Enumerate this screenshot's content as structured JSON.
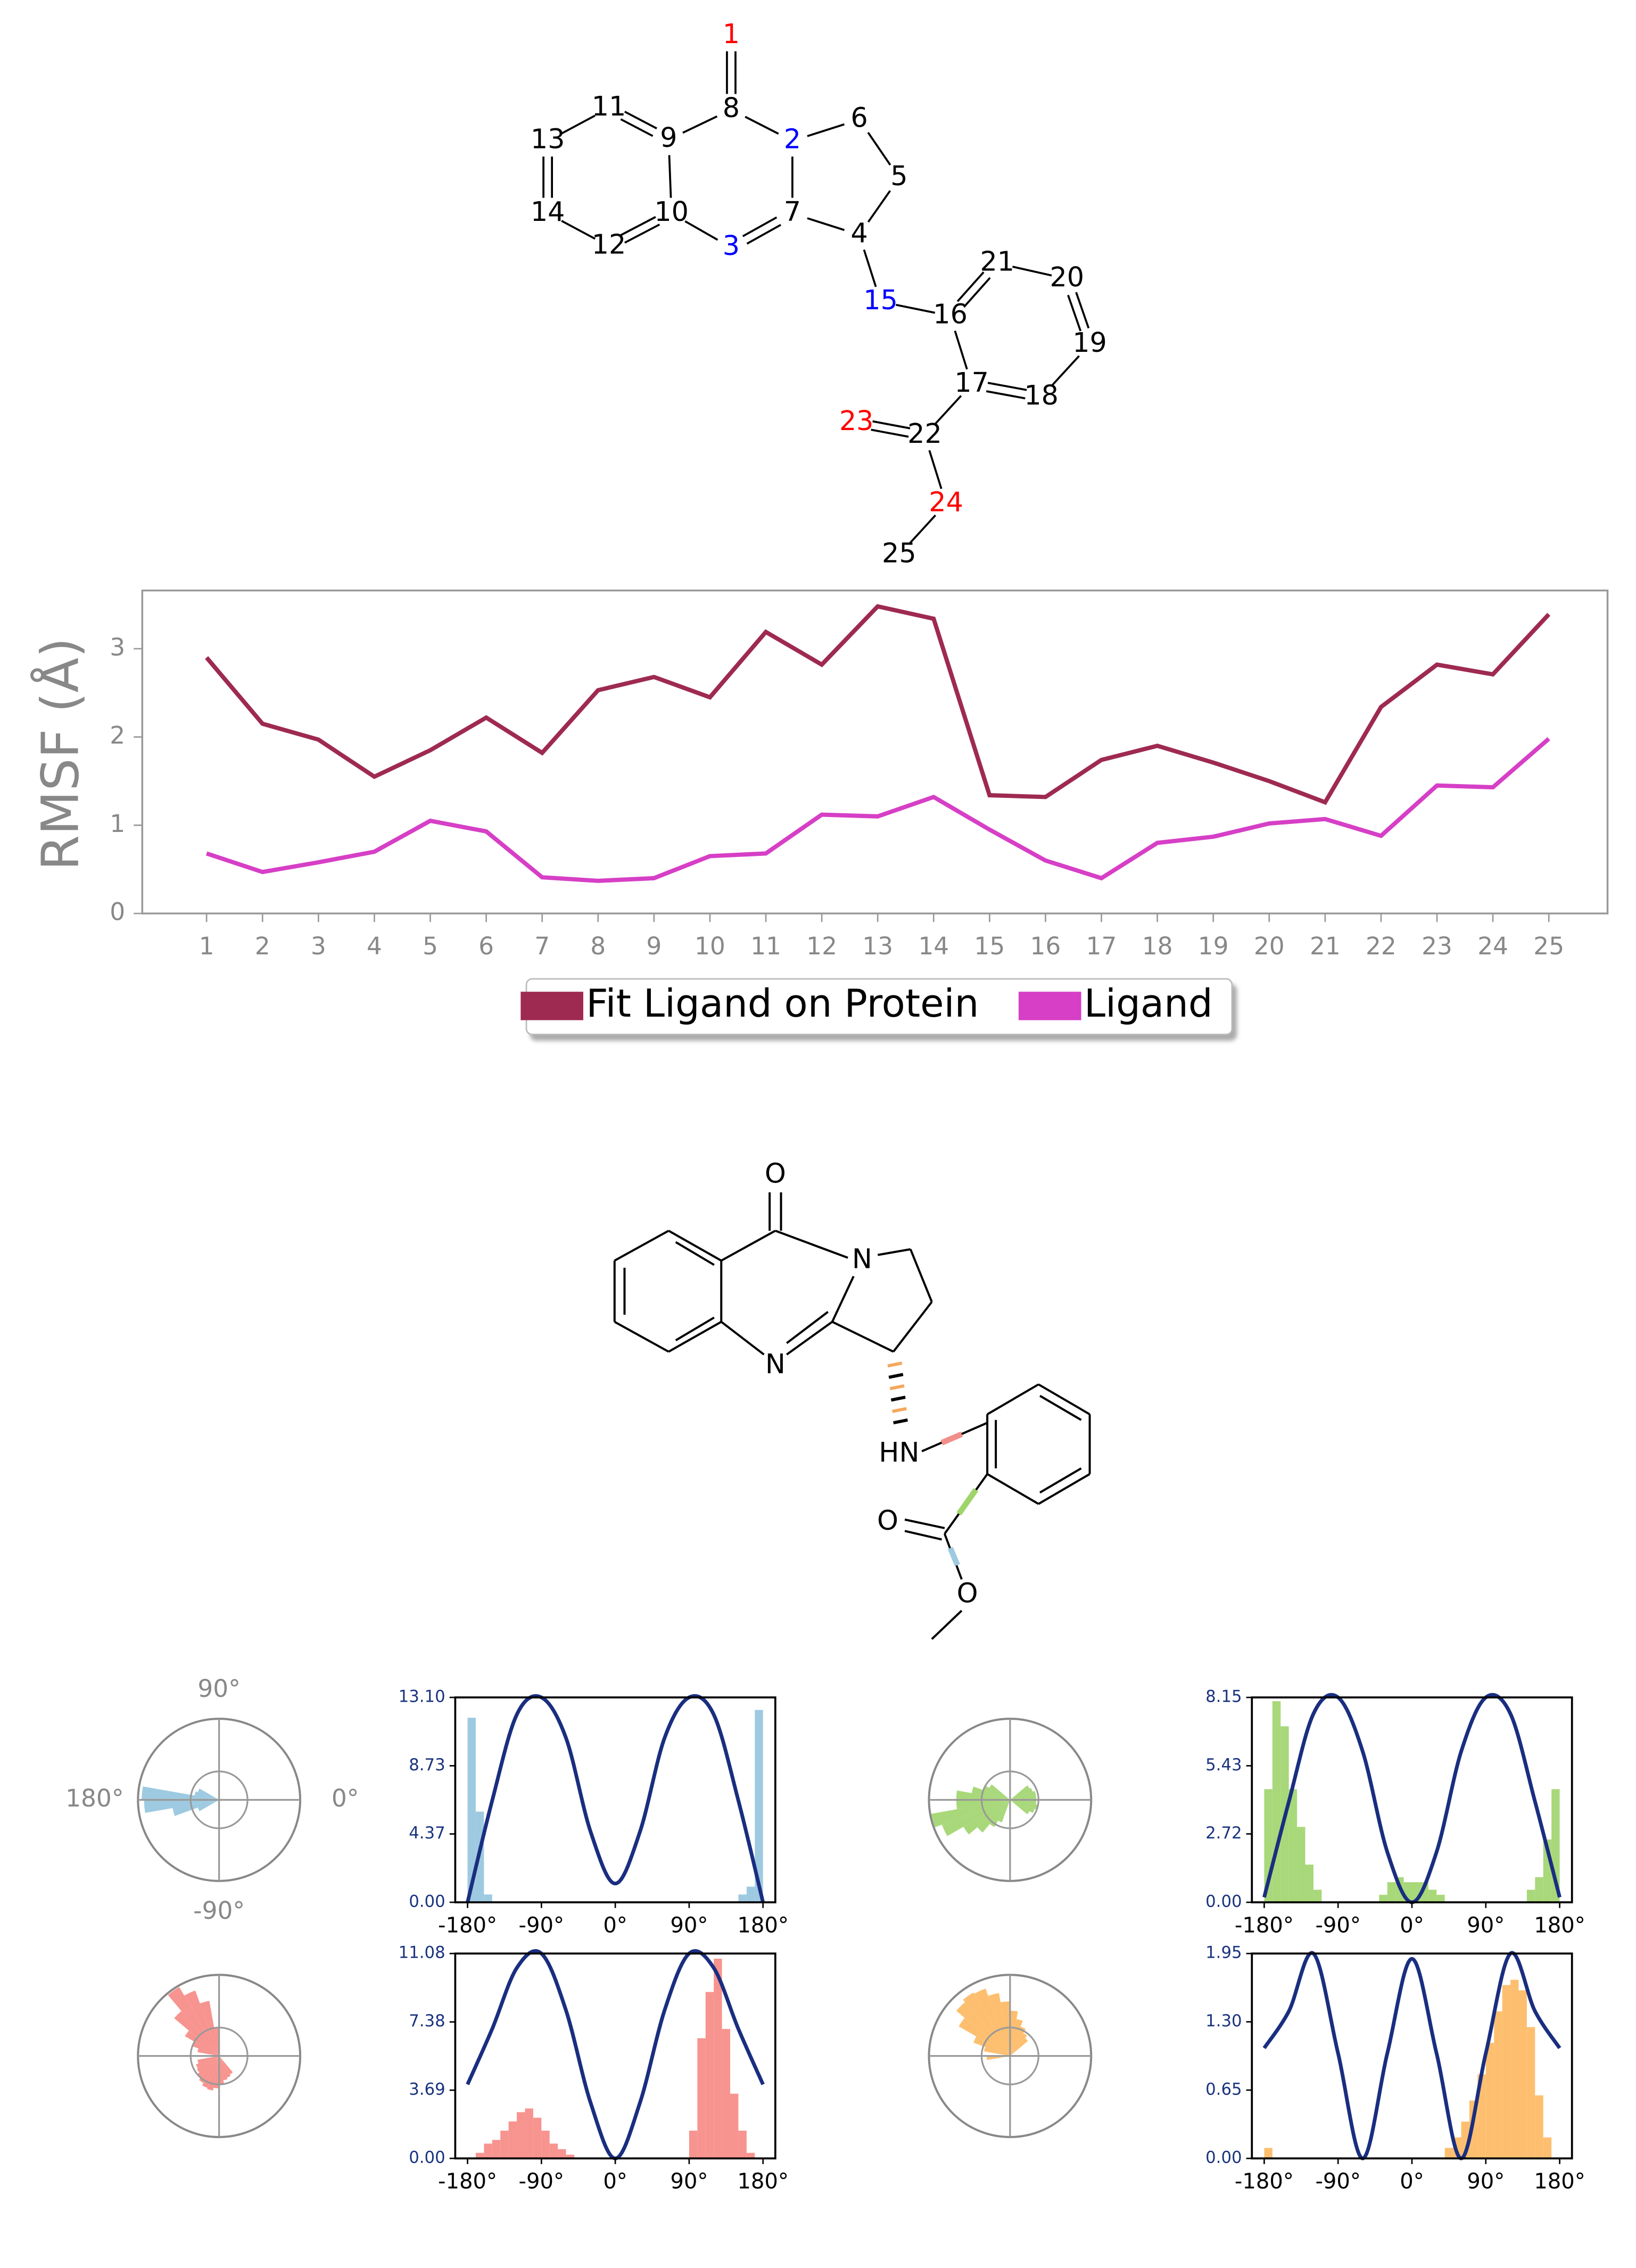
{
  "molecule_numbered": {
    "atoms": [
      {
        "label": "1",
        "color": "#ff0000"
      },
      {
        "label": "2",
        "color": "#0000ff"
      },
      {
        "label": "3",
        "color": "#0000ff"
      },
      {
        "label": "4",
        "color": "#000000"
      },
      {
        "label": "5",
        "color": "#000000"
      },
      {
        "label": "6",
        "color": "#000000"
      },
      {
        "label": "7",
        "color": "#000000"
      },
      {
        "label": "8",
        "color": "#000000"
      },
      {
        "label": "9",
        "color": "#000000"
      },
      {
        "label": "10",
        "color": "#000000"
      },
      {
        "label": "11",
        "color": "#000000"
      },
      {
        "label": "12",
        "color": "#000000"
      },
      {
        "label": "13",
        "color": "#000000"
      },
      {
        "label": "14",
        "color": "#000000"
      },
      {
        "label": "15",
        "color": "#0000ff"
      },
      {
        "label": "16",
        "color": "#000000"
      },
      {
        "label": "17",
        "color": "#000000"
      },
      {
        "label": "18",
        "color": "#000000"
      },
      {
        "label": "19",
        "color": "#000000"
      },
      {
        "label": "20",
        "color": "#000000"
      },
      {
        "label": "21",
        "color": "#000000"
      },
      {
        "label": "22",
        "color": "#000000"
      },
      {
        "label": "23",
        "color": "#ff0000"
      },
      {
        "label": "24",
        "color": "#ff0000"
      },
      {
        "label": "25",
        "color": "#000000"
      }
    ]
  },
  "molecule_2d": {
    "atoms": [
      "O",
      "N",
      "N",
      "HN",
      "O",
      "O"
    ]
  },
  "chart_data": [
    {
      "type": "line",
      "ylabel": "RMSF (Å)",
      "x": [
        1,
        2,
        3,
        4,
        5,
        6,
        7,
        8,
        9,
        10,
        11,
        12,
        13,
        14,
        15,
        16,
        17,
        18,
        19,
        20,
        21,
        22,
        23,
        24,
        25
      ],
      "xlim": [
        -0.15,
        26.05
      ],
      "xticks": [
        1,
        2,
        3,
        4,
        5,
        6,
        7,
        8,
        9,
        10,
        11,
        12,
        13,
        14,
        15,
        16,
        17,
        18,
        19,
        20,
        21,
        22,
        23,
        24,
        25
      ],
      "ylim": [
        0,
        3.66
      ],
      "yticks": [
        0,
        1,
        2,
        3
      ],
      "legend": "lower center",
      "series": [
        {
          "name": "Fit Ligand on Protein",
          "color": "#9e2a51",
          "values": [
            2.9,
            2.15,
            1.97,
            1.55,
            1.85,
            2.22,
            1.82,
            2.53,
            2.68,
            2.45,
            3.19,
            2.82,
            3.48,
            3.34,
            1.34,
            1.32,
            1.74,
            1.9,
            1.71,
            1.5,
            1.26,
            2.34,
            2.82,
            2.71,
            3.39
          ]
        },
        {
          "name": "Ligand",
          "color": "#d63fc6",
          "values": [
            0.68,
            0.47,
            0.58,
            0.7,
            1.05,
            0.93,
            0.41,
            0.37,
            0.4,
            0.65,
            0.68,
            1.12,
            1.1,
            1.32,
            0.95,
            0.6,
            0.4,
            0.8,
            0.87,
            1.02,
            1.07,
            0.88,
            1.45,
            1.43,
            1.98
          ]
        }
      ]
    },
    {
      "type": "torsion",
      "color": "#9ecae1",
      "line_color": "#1a2e80",
      "polar_labels": [
        "90°",
        "180°",
        "0°",
        "-90°"
      ],
      "xlim": [
        -195,
        195
      ],
      "xticks": [
        {
          "value": -180,
          "label": "-180°"
        },
        {
          "value": -90,
          "label": "-90°"
        },
        {
          "value": 0,
          "label": "0°"
        },
        {
          "value": 90,
          "label": "90°"
        },
        {
          "value": 180,
          "label": "180°"
        }
      ],
      "ylim": [
        0,
        13.1
      ],
      "yticks": [
        {
          "value": 0,
          "label": "0.00"
        },
        {
          "value": 4.37,
          "label": "4.37"
        },
        {
          "value": 8.73,
          "label": "8.73"
        },
        {
          "value": 13.1,
          "label": "13.10"
        }
      ],
      "bins": [
        -180,
        -170,
        -160,
        -150,
        -140,
        -130,
        -120,
        -110,
        -100,
        -90,
        -80,
        -70,
        -60,
        -50,
        -40,
        -30,
        -20,
        -10,
        0,
        10,
        20,
        30,
        40,
        50,
        60,
        70,
        80,
        90,
        100,
        110,
        120,
        130,
        140,
        150,
        160,
        170,
        180
      ],
      "counts": [
        11.8,
        5.8,
        0.5,
        0,
        0,
        0,
        0,
        0,
        0,
        0,
        0,
        0,
        0,
        0,
        0,
        0,
        0,
        0,
        0,
        0,
        0,
        0,
        0,
        0,
        0,
        0,
        0,
        0,
        0,
        0,
        0,
        0,
        0,
        0.5,
        1,
        12.3
      ],
      "potential_x": [
        -180,
        -150,
        -120,
        -90,
        -60,
        -30,
        0,
        30,
        60,
        90,
        120,
        150,
        180
      ],
      "potential": [
        0,
        6.5,
        12,
        13.1,
        10.5,
        4.5,
        1.2,
        4.5,
        10.5,
        13.1,
        12,
        6.5,
        0
      ]
    },
    {
      "type": "torsion",
      "color": "#a8d87a",
      "line_color": "#1a2e80",
      "xlim": [
        -195,
        195
      ],
      "xticks": [
        {
          "value": -180,
          "label": "-180°"
        },
        {
          "value": -90,
          "label": "-90°"
        },
        {
          "value": 0,
          "label": "0°"
        },
        {
          "value": 90,
          "label": "90°"
        },
        {
          "value": 180,
          "label": "180°"
        }
      ],
      "ylim": [
        0,
        8.15
      ],
      "yticks": [
        {
          "value": 0,
          "label": "0.00"
        },
        {
          "value": 2.72,
          "label": "2.72"
        },
        {
          "value": 5.43,
          "label": "5.43"
        },
        {
          "value": 8.15,
          "label": "8.15"
        }
      ],
      "bins": [
        -180,
        -170,
        -160,
        -150,
        -140,
        -130,
        -120,
        -110,
        -100,
        -90,
        -80,
        -70,
        -60,
        -50,
        -40,
        -30,
        -20,
        -10,
        0,
        10,
        20,
        30,
        40,
        50,
        60,
        70,
        80,
        90,
        100,
        110,
        120,
        130,
        140,
        150,
        160,
        170,
        180
      ],
      "counts": [
        4.5,
        8,
        7,
        4.5,
        3,
        1.5,
        0.5,
        0,
        0,
        0,
        0,
        0,
        0,
        0,
        0.3,
        0.8,
        1,
        0.8,
        0.8,
        0.8,
        0.5,
        0.3,
        0,
        0,
        0,
        0,
        0,
        0,
        0,
        0,
        0,
        0,
        0.5,
        1,
        2.5,
        4.5
      ],
      "potential_x": [
        -180,
        -150,
        -120,
        -90,
        -60,
        -30,
        0,
        30,
        60,
        90,
        120,
        150,
        180
      ],
      "potential": [
        0.2,
        4,
        7.5,
        8.15,
        6,
        2,
        0,
        2,
        6,
        8.15,
        7.5,
        4,
        0.2
      ]
    },
    {
      "type": "torsion",
      "color": "#f7948f",
      "line_color": "#1a2e80",
      "xlim": [
        -195,
        195
      ],
      "xticks": [
        {
          "value": -180,
          "label": "-180°"
        },
        {
          "value": -90,
          "label": "-90°"
        },
        {
          "value": 0,
          "label": "0°"
        },
        {
          "value": 90,
          "label": "90°"
        },
        {
          "value": 180,
          "label": "180°"
        }
      ],
      "ylim": [
        0,
        11.08
      ],
      "yticks": [
        {
          "value": 0,
          "label": "0.00"
        },
        {
          "value": 3.69,
          "label": "3.69"
        },
        {
          "value": 7.38,
          "label": "7.38"
        },
        {
          "value": 11.08,
          "label": "11.08"
        }
      ],
      "bins": [
        -180,
        -170,
        -160,
        -150,
        -140,
        -130,
        -120,
        -110,
        -100,
        -90,
        -80,
        -70,
        -60,
        -50,
        -40,
        -30,
        -20,
        -10,
        0,
        10,
        20,
        30,
        40,
        50,
        60,
        70,
        80,
        90,
        100,
        110,
        120,
        130,
        140,
        150,
        160,
        170,
        180
      ],
      "counts": [
        0,
        0.3,
        0.8,
        1,
        1.5,
        2,
        2.5,
        2.7,
        2.2,
        1.5,
        0.8,
        0.5,
        0.2,
        0,
        0,
        0,
        0,
        0,
        0,
        0,
        0,
        0,
        0,
        0,
        0,
        0,
        0,
        1.5,
        6.5,
        9,
        10.8,
        7,
        3.5,
        1.5,
        0.3,
        0
      ],
      "potential_x": [
        -180,
        -150,
        -120,
        -90,
        -60,
        -30,
        0,
        30,
        60,
        90,
        120,
        150,
        180
      ],
      "potential": [
        4,
        7,
        10.3,
        11.08,
        8,
        3,
        0,
        3,
        8,
        11.08,
        10.3,
        7,
        4
      ]
    },
    {
      "type": "torsion",
      "color": "#fdbf6f",
      "line_color": "#1a2e80",
      "xlim": [
        -195,
        195
      ],
      "xticks": [
        {
          "value": -180,
          "label": "-180°"
        },
        {
          "value": -90,
          "label": "-90°"
        },
        {
          "value": 0,
          "label": "0°"
        },
        {
          "value": 90,
          "label": "90°"
        },
        {
          "value": 180,
          "label": "180°"
        }
      ],
      "ylim": [
        0,
        1.95
      ],
      "yticks": [
        {
          "value": 0,
          "label": "0.00"
        },
        {
          "value": 0.65,
          "label": "0.65"
        },
        {
          "value": 1.3,
          "label": "1.30"
        },
        {
          "value": 1.95,
          "label": "1.95"
        }
      ],
      "bins": [
        -180,
        -170,
        -160,
        -150,
        -140,
        -130,
        -120,
        -110,
        -100,
        -90,
        -80,
        -70,
        -60,
        -50,
        -40,
        -30,
        -20,
        -10,
        0,
        10,
        20,
        30,
        40,
        50,
        60,
        70,
        80,
        90,
        100,
        110,
        120,
        130,
        140,
        150,
        160,
        170,
        180
      ],
      "counts": [
        0.1,
        0,
        0,
        0,
        0,
        0,
        0,
        0,
        0,
        0,
        0,
        0,
        0,
        0,
        0,
        0,
        0,
        0,
        0,
        0,
        0,
        0,
        0.1,
        0.2,
        0.35,
        0.55,
        0.8,
        1.1,
        1.4,
        1.65,
        1.7,
        1.6,
        1.25,
        0.6,
        0.2,
        0
      ],
      "potential_x": [
        -180,
        -150,
        -120,
        -90,
        -60,
        -30,
        0,
        30,
        60,
        90,
        120,
        150,
        180
      ],
      "potential": [
        1.05,
        1.4,
        1.95,
        1,
        0,
        1,
        1.9,
        1,
        0,
        1,
        1.95,
        1.4,
        1.05
      ]
    }
  ]
}
